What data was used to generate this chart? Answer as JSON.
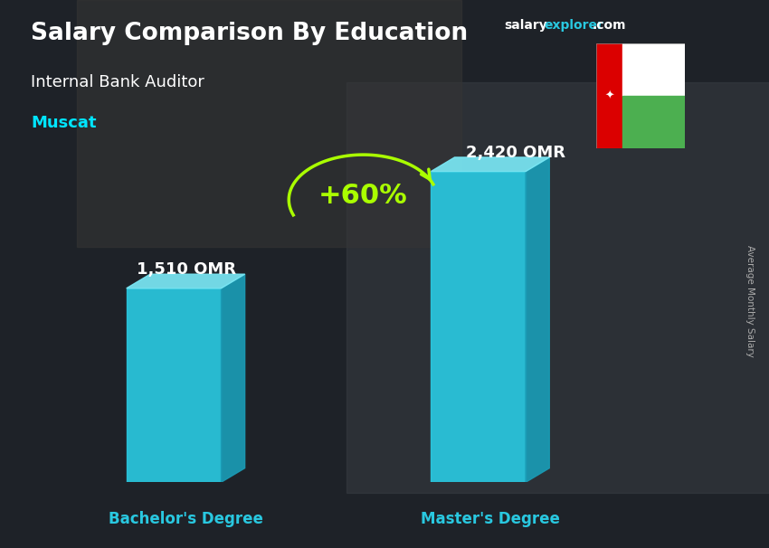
{
  "title": "Salary Comparison By Education",
  "subtitle": "Internal Bank Auditor",
  "location": "Muscat",
  "categories": [
    "Bachelor's Degree",
    "Master's Degree"
  ],
  "values": [
    1510,
    2420
  ],
  "bar_labels": [
    "1,510 OMR",
    "2,420 OMR"
  ],
  "pct_change": "+60%",
  "bar_color_face": "#29C8E0",
  "bar_color_right": "#5DDDED",
  "bar_color_top": "#7AE8F5",
  "bar_color_dark_right": "#1A9BB5",
  "ylabel_text": "Average Monthly Salary",
  "title_color": "#FFFFFF",
  "subtitle_color": "#FFFFFF",
  "location_color": "#00E5FF",
  "bar_label_color": "#FFFFFF",
  "xlabel_color": "#29C8E0",
  "pct_color": "#AAFF00",
  "arrow_color": "#AAFF00",
  "bg_color": "#2a2a2a",
  "website_salary_color": "#FFFFFF",
  "website_explorer_color": "#29C8E0",
  "figsize": [
    8.5,
    6.06
  ],
  "dpi": 100
}
